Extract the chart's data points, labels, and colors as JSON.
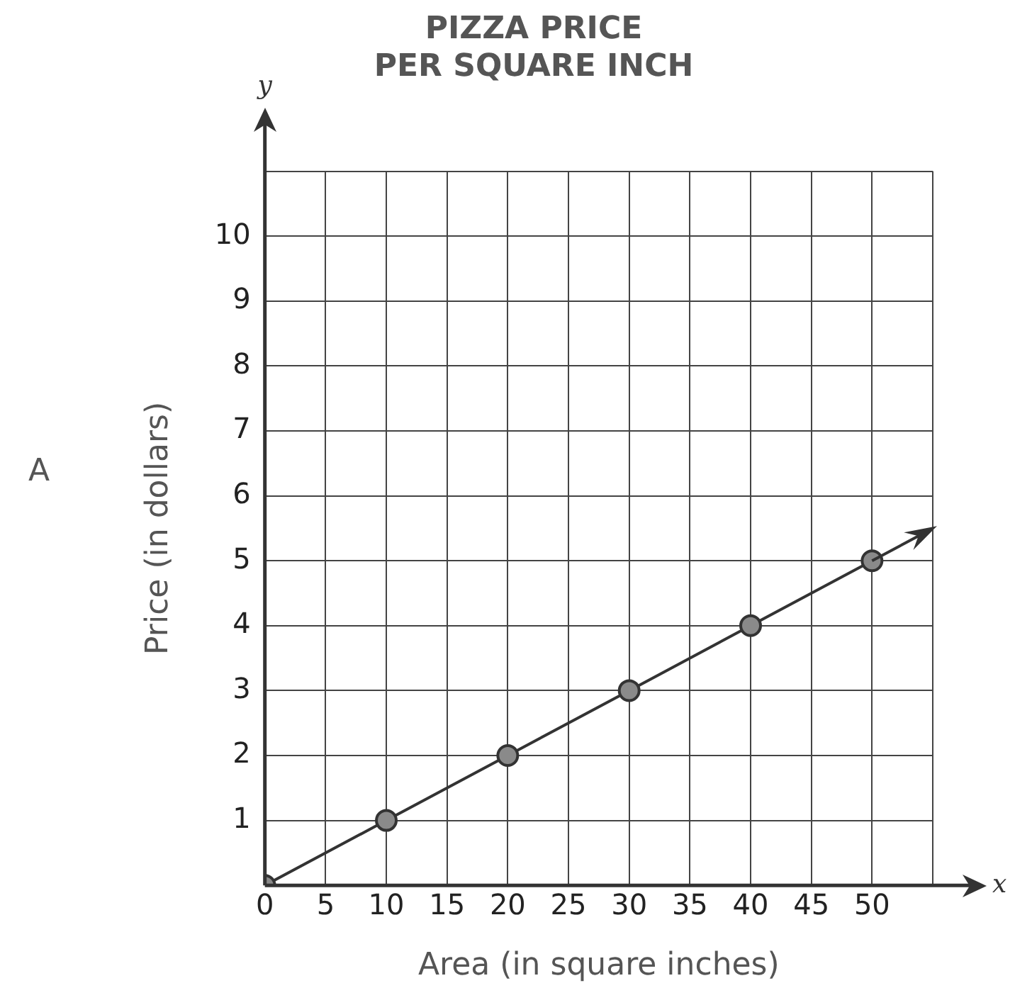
{
  "chart_data": {
    "type": "line",
    "title": "PIZZA PRICE PER SQUARE INCH",
    "xlabel": "Area (in square inches)",
    "ylabel": "Price (in dollars)",
    "annotations": [
      "A",
      "y",
      "x"
    ],
    "x": [
      0,
      10,
      20,
      30,
      40,
      50
    ],
    "series": [
      {
        "color": "#333333",
        "values": [
          0,
          1,
          2,
          3,
          4,
          5
        ]
      }
    ],
    "xlim": [
      0,
      55
    ],
    "xticks": [
      0,
      5,
      10,
      15,
      20,
      25,
      30,
      35,
      40,
      45,
      50,
      {
        "value": 55,
        "label": null
      }
    ],
    "ylim": [
      0,
      11
    ],
    "yticks": [
      {
        "value": 0,
        "label": null
      },
      1,
      2,
      3,
      4,
      5,
      6,
      7,
      8,
      9,
      10,
      {
        "value": 11,
        "label": null
      }
    ],
    "grid": true,
    "legend": false,
    "marker": "circle",
    "line_style": "solid"
  }
}
